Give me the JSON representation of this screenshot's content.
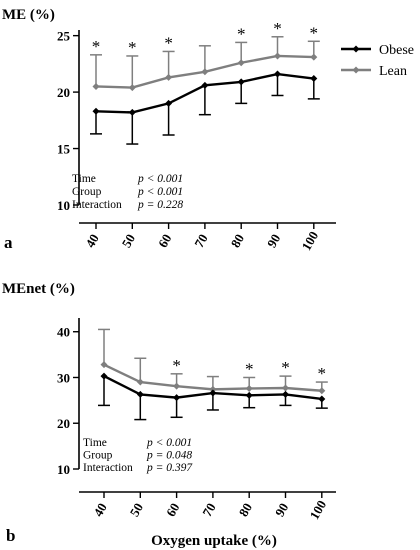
{
  "chart_data": [
    {
      "type": "line",
      "panel_label": "a",
      "ylabel": "ME (%)",
      "xlabel": "",
      "categories": [
        "40",
        "50",
        "60",
        "70",
        "80",
        "90",
        "100"
      ],
      "yticks": [
        "10",
        "15",
        "20",
        "25"
      ],
      "ylim": [
        10,
        25.5
      ],
      "series": [
        {
          "name": "Obese",
          "color": "#000000",
          "values": [
            18.3,
            18.2,
            19.0,
            20.6,
            20.9,
            21.6,
            21.2
          ],
          "errors": [
            2.0,
            2.8,
            2.8,
            2.6,
            1.9,
            1.9,
            1.8
          ],
          "error_direction": "down"
        },
        {
          "name": "Lean",
          "color": "#7f7f7f",
          "values": [
            20.5,
            20.4,
            21.3,
            21.8,
            22.6,
            23.2,
            23.1
          ],
          "errors": [
            2.8,
            2.8,
            2.3,
            2.3,
            1.8,
            1.7,
            1.4
          ],
          "error_direction": "up"
        }
      ],
      "significance": [
        "*",
        "*",
        "*",
        "",
        "*",
        "*",
        "*"
      ],
      "legend": {
        "position": "top-right",
        "entries": [
          "Obese",
          "Lean"
        ]
      },
      "stats": [
        {
          "label": "Time",
          "value": "p < 0.001"
        },
        {
          "label": "Group",
          "value": "p < 0.001"
        },
        {
          "label": "Interaction",
          "value": "p = 0.228"
        }
      ]
    },
    {
      "type": "line",
      "panel_label": "b",
      "ylabel": "MEnet (%)",
      "xlabel": "Oxygen uptake (%)",
      "categories": [
        "40",
        "50",
        "60",
        "70",
        "80",
        "90",
        "100"
      ],
      "yticks": [
        "10",
        "20",
        "30",
        "40"
      ],
      "ylim": [
        10,
        43
      ],
      "series": [
        {
          "name": "Obese",
          "color": "#000000",
          "values": [
            30.3,
            26.3,
            25.6,
            26.6,
            26.1,
            26.3,
            25.3
          ],
          "errors": [
            6.4,
            5.5,
            4.3,
            3.7,
            2.7,
            2.4,
            2.0
          ],
          "error_direction": "down"
        },
        {
          "name": "Lean",
          "color": "#7f7f7f",
          "values": [
            32.8,
            29.0,
            28.1,
            27.4,
            27.6,
            27.7,
            27.1
          ],
          "errors": [
            7.7,
            5.2,
            2.7,
            2.8,
            2.4,
            2.6,
            1.9
          ],
          "error_direction": "up"
        }
      ],
      "significance": [
        "",
        "",
        "*",
        "",
        "*",
        "*",
        "*"
      ],
      "stats": [
        {
          "label": "Time",
          "value": "p < 0.001"
        },
        {
          "label": "Group",
          "value": "p = 0.048"
        },
        {
          "label": "Interaction",
          "value": "p = 0.397"
        }
      ]
    }
  ]
}
